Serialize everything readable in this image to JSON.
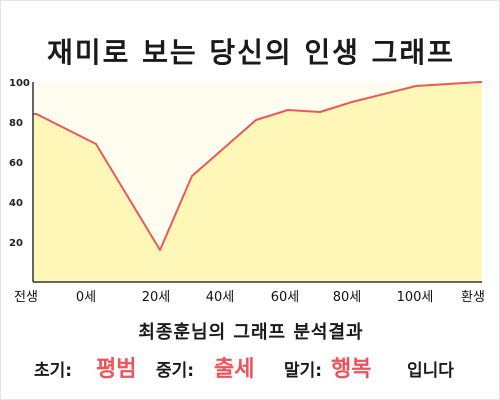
{
  "title": "재미로 보는 당신의 인생 그래프",
  "chart_data": {
    "type": "area",
    "x_tick_labels": [
      "전생",
      "0세",
      "20세",
      "40세",
      "60세",
      "80세",
      "100세",
      "환생"
    ],
    "y_ticks": [
      20,
      40,
      60,
      80,
      100
    ],
    "ylim": [
      0,
      100
    ],
    "points": [
      {
        "x": -18.6,
        "y": 84
      },
      {
        "x": 0,
        "y": 69
      },
      {
        "x": 20,
        "y": 16
      },
      {
        "x": 30,
        "y": 53
      },
      {
        "x": 50,
        "y": 81
      },
      {
        "x": 60,
        "y": 86
      },
      {
        "x": 70,
        "y": 85
      },
      {
        "x": 80,
        "y": 90
      },
      {
        "x": 100,
        "y": 98
      },
      {
        "x": 120,
        "y": 100
      }
    ],
    "line_color": "#e85a5a",
    "fill_color": "#fff7b8",
    "plot_background": "#fffdf0",
    "grid": false
  },
  "summary": {
    "subtitle": "최종훈님의 그래프 분석결과",
    "early_label": "초기:",
    "early_value": "평범",
    "middle_label": "중기:",
    "middle_value": "출세",
    "late_label": "말기:",
    "late_value": "행복",
    "ending": "입니다",
    "accent_color": "#f0525a"
  }
}
